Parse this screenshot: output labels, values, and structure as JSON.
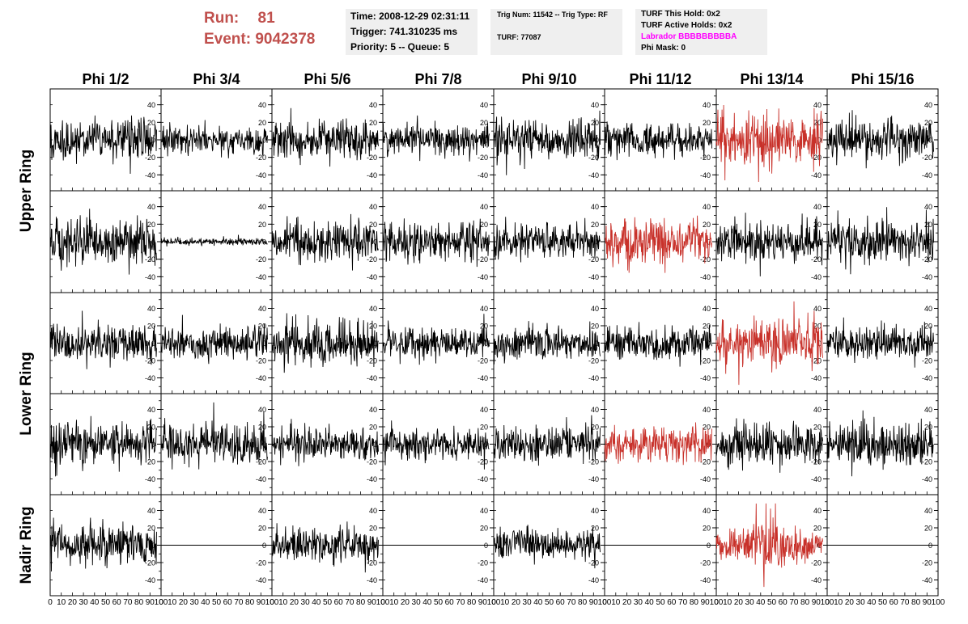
{
  "header": {
    "run_label": "Run:",
    "run_value": "81",
    "event_label": "Event:",
    "event_value": "9042378"
  },
  "time_box": {
    "time": "Time: 2008-12-29 02:31:11",
    "trigger": "Trigger: 741.310235 ms",
    "priority": "Priority: 5 -- Queue: 5"
  },
  "trig_box": {
    "trig": "Trig Num: 11542 -- Trig Type: RF",
    "turf": "TURF: 77087"
  },
  "turf_box": {
    "this_hold": "TURF This Hold: 0x2",
    "active_holds": "TURF Active Holds: 0x2",
    "labrador": "Labrador BBBBBBBBBA",
    "phi_mask": "Phi Mask: 0"
  },
  "colors": {
    "accent": "#c0504d",
    "trace_normal": "#000000",
    "trace_highlight": "#c8312a",
    "labrador": "#ff00ff",
    "info_bg": "#efefef"
  },
  "chart_data": {
    "type": "line",
    "columns": [
      "Phi 1/2",
      "Phi 3/4",
      "Phi 5/6",
      "Phi 7/8",
      "Phi 9/10",
      "Phi 11/12",
      "Phi 13/14",
      "Phi 15/16"
    ],
    "rows": [
      "Upper Ring",
      "Upper Ring",
      "Lower Ring",
      "Lower Ring",
      "Nadir Ring"
    ],
    "row_labels": [
      {
        "text": "Upper Ring",
        "spans_rows": [
          0,
          1
        ]
      },
      {
        "text": "Lower Ring",
        "spans_rows": [
          2,
          3
        ]
      },
      {
        "text": "Nadir Ring",
        "spans_rows": [
          4
        ]
      }
    ],
    "xlim": [
      0,
      100
    ],
    "ylim": [
      -50,
      50
    ],
    "x_ticks": [
      0,
      10,
      20,
      30,
      40,
      50,
      60,
      70,
      80,
      90,
      100
    ],
    "y_ticks": [
      -40,
      -20,
      0,
      20,
      40
    ],
    "samples_per_trace": 260,
    "panels": [
      [
        {
          "amp": 17,
          "state": "normal"
        },
        {
          "amp": 13,
          "state": "normal"
        },
        {
          "amp": 17,
          "state": "normal"
        },
        {
          "amp": 13,
          "state": "normal"
        },
        {
          "amp": 17,
          "state": "normal"
        },
        {
          "amp": 15,
          "state": "normal"
        },
        {
          "amp": 22,
          "state": "highlight"
        },
        {
          "amp": 17,
          "state": "normal"
        }
      ],
      [
        {
          "amp": 20,
          "state": "normal"
        },
        {
          "amp": 3,
          "state": "normal"
        },
        {
          "amp": 18,
          "state": "normal"
        },
        {
          "amp": 16,
          "state": "normal"
        },
        {
          "amp": 15,
          "state": "normal"
        },
        {
          "amp": 20,
          "state": "highlight"
        },
        {
          "amp": 18,
          "state": "normal"
        },
        {
          "amp": 20,
          "state": "normal"
        }
      ],
      [
        {
          "amp": 17,
          "state": "normal"
        },
        {
          "amp": 15,
          "state": "normal"
        },
        {
          "amp": 20,
          "state": "normal"
        },
        {
          "amp": 15,
          "state": "normal"
        },
        {
          "amp": 15,
          "state": "normal"
        },
        {
          "amp": 15,
          "state": "normal"
        },
        {
          "amp": 22,
          "state": "highlight"
        },
        {
          "amp": 15,
          "state": "normal"
        }
      ],
      [
        {
          "amp": 18,
          "state": "normal"
        },
        {
          "amp": 17,
          "state": "normal"
        },
        {
          "amp": 14,
          "state": "normal"
        },
        {
          "amp": 13,
          "state": "normal"
        },
        {
          "amp": 16,
          "state": "normal"
        },
        {
          "amp": 15,
          "state": "highlight"
        },
        {
          "amp": 17,
          "state": "normal"
        },
        {
          "amp": 20,
          "state": "normal"
        }
      ],
      [
        {
          "amp": 17,
          "state": "normal"
        },
        {
          "amp": 0,
          "state": "flat"
        },
        {
          "amp": 15,
          "state": "normal"
        },
        {
          "amp": 0,
          "state": "flat"
        },
        {
          "amp": 15,
          "state": "normal"
        },
        {
          "amp": 0,
          "state": "flat"
        },
        {
          "amp": 22,
          "state": "highlight"
        },
        {
          "amp": 0,
          "state": "flat"
        }
      ]
    ]
  }
}
